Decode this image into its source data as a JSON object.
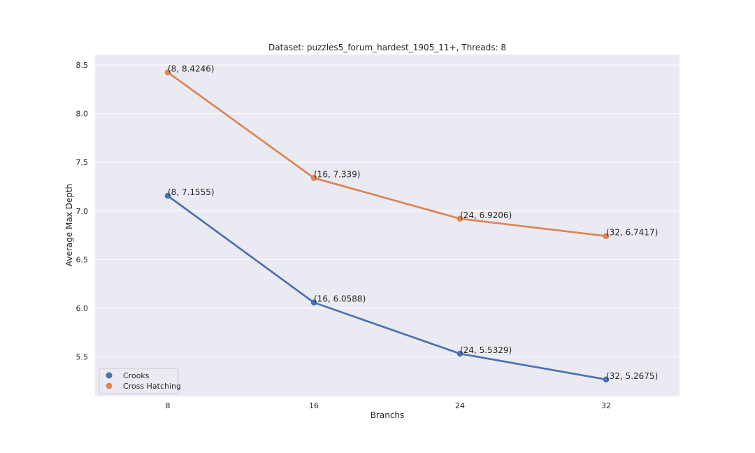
{
  "chart_data": {
    "type": "line",
    "title": "Dataset: puzzles5_forum_hardest_1905_11+, Threads: 8",
    "xlabel": "Branchs",
    "ylabel": "Average Max Depth",
    "categories": [
      "8",
      "16",
      "24",
      "32"
    ],
    "yticks": [
      "5.5",
      "6.0",
      "6.5",
      "7.0",
      "7.5",
      "8.0",
      "8.5"
    ],
    "ylim": [
      5.1,
      8.6
    ],
    "grid": true,
    "legend_position": "lower-left",
    "series": [
      {
        "name": "Crooks",
        "color": "#4c72b0",
        "values": [
          7.1555,
          6.0588,
          5.5329,
          5.2675
        ],
        "labels": [
          "(8, 7.1555)",
          "(16, 6.0588)",
          "(24, 5.5329)",
          "(32, 5.2675)"
        ]
      },
      {
        "name": "Cross Hatching",
        "color": "#dd8452",
        "values": [
          8.4246,
          7.339,
          6.9206,
          6.7417
        ],
        "labels": [
          "(8, 8.4246)",
          "(16, 7.339)",
          "(24, 6.9206)",
          "(32, 6.7417)"
        ]
      }
    ]
  }
}
